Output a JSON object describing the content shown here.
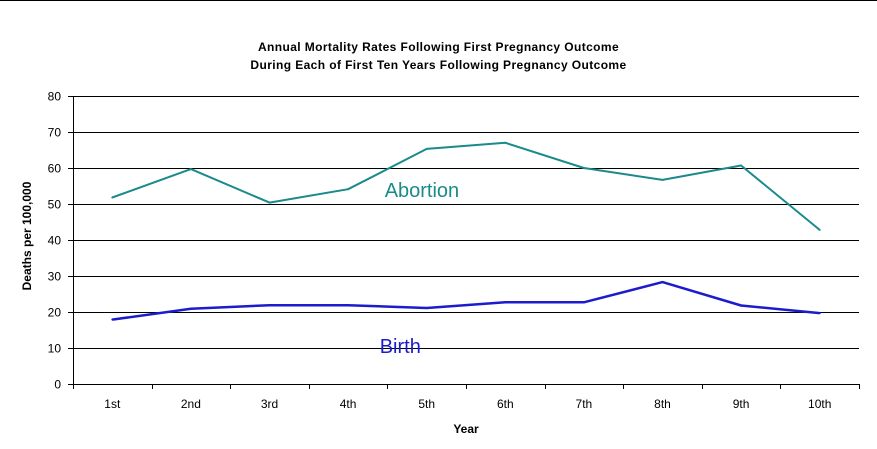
{
  "chart_data": {
    "type": "line",
    "title": "Annual Mortality Rates Following First Pregnancy Outcome",
    "subtitle": "During Each of First Ten Years Following Pregnancy Outcome",
    "xlabel": "Year",
    "ylabel": "Deaths per 100,000",
    "ylim": [
      0,
      80
    ],
    "yticks": [
      0,
      10,
      20,
      30,
      40,
      50,
      60,
      70,
      80
    ],
    "grid": true,
    "legend": "inline labels",
    "categories": [
      "1st",
      "2nd",
      "3rd",
      "4th",
      "5th",
      "6th",
      "7th",
      "8th",
      "9th",
      "10th"
    ],
    "series": [
      {
        "name": "Abortion",
        "color": "#1a8a8a",
        "values": [
          51.8,
          59.7,
          50.4,
          54.1,
          65.3,
          67.0,
          60.0,
          56.7,
          60.7,
          42.8
        ]
      },
      {
        "name": "Birth",
        "color": "#1c1ccc",
        "values": [
          17.9,
          20.9,
          21.9,
          21.9,
          21.1,
          22.7,
          22.7,
          28.3,
          21.8,
          19.7
        ]
      }
    ]
  }
}
